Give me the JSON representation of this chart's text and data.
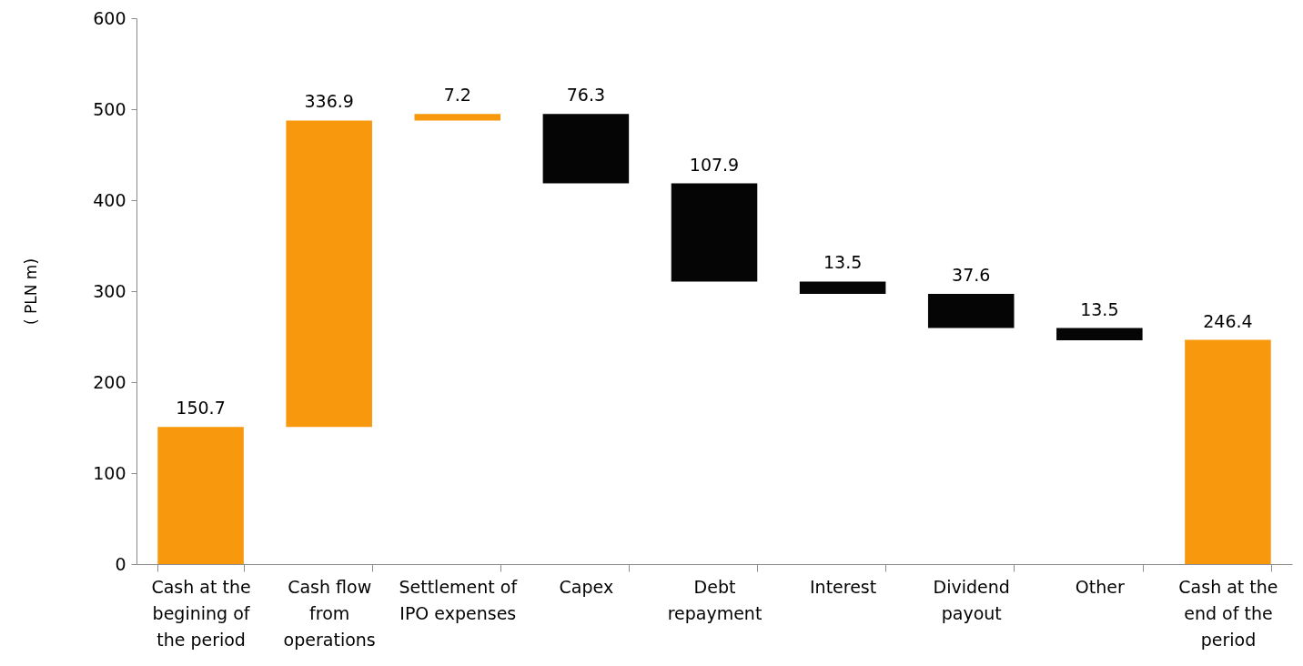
{
  "chart_data": {
    "type": "bar",
    "ylabel": "( PLN m)",
    "categories": [
      "Cash at the begining of the period",
      "Cash flow from operations",
      "Settlement of IPO expenses",
      "Capex",
      "Debt repayment",
      "Interest",
      "Dividend payout",
      "Other",
      "Cash at the end of the period"
    ],
    "values": [
      150.7,
      336.9,
      7.2,
      76.3,
      107.9,
      13.5,
      37.6,
      13.5,
      246.4
    ],
    "base": [
      0,
      150.7,
      487.6,
      418.5,
      310.6,
      297.1,
      259.5,
      246.0,
      0
    ],
    "colors": [
      "#f7980d",
      "#f7980d",
      "#f7980d",
      "#050505",
      "#050505",
      "#050505",
      "#050505",
      "#050505",
      "#f7980d"
    ],
    "ylim": [
      0,
      600
    ],
    "yticks": [
      0,
      100,
      200,
      300,
      400,
      500,
      600
    ],
    "grid": false,
    "data_labels": true
  }
}
